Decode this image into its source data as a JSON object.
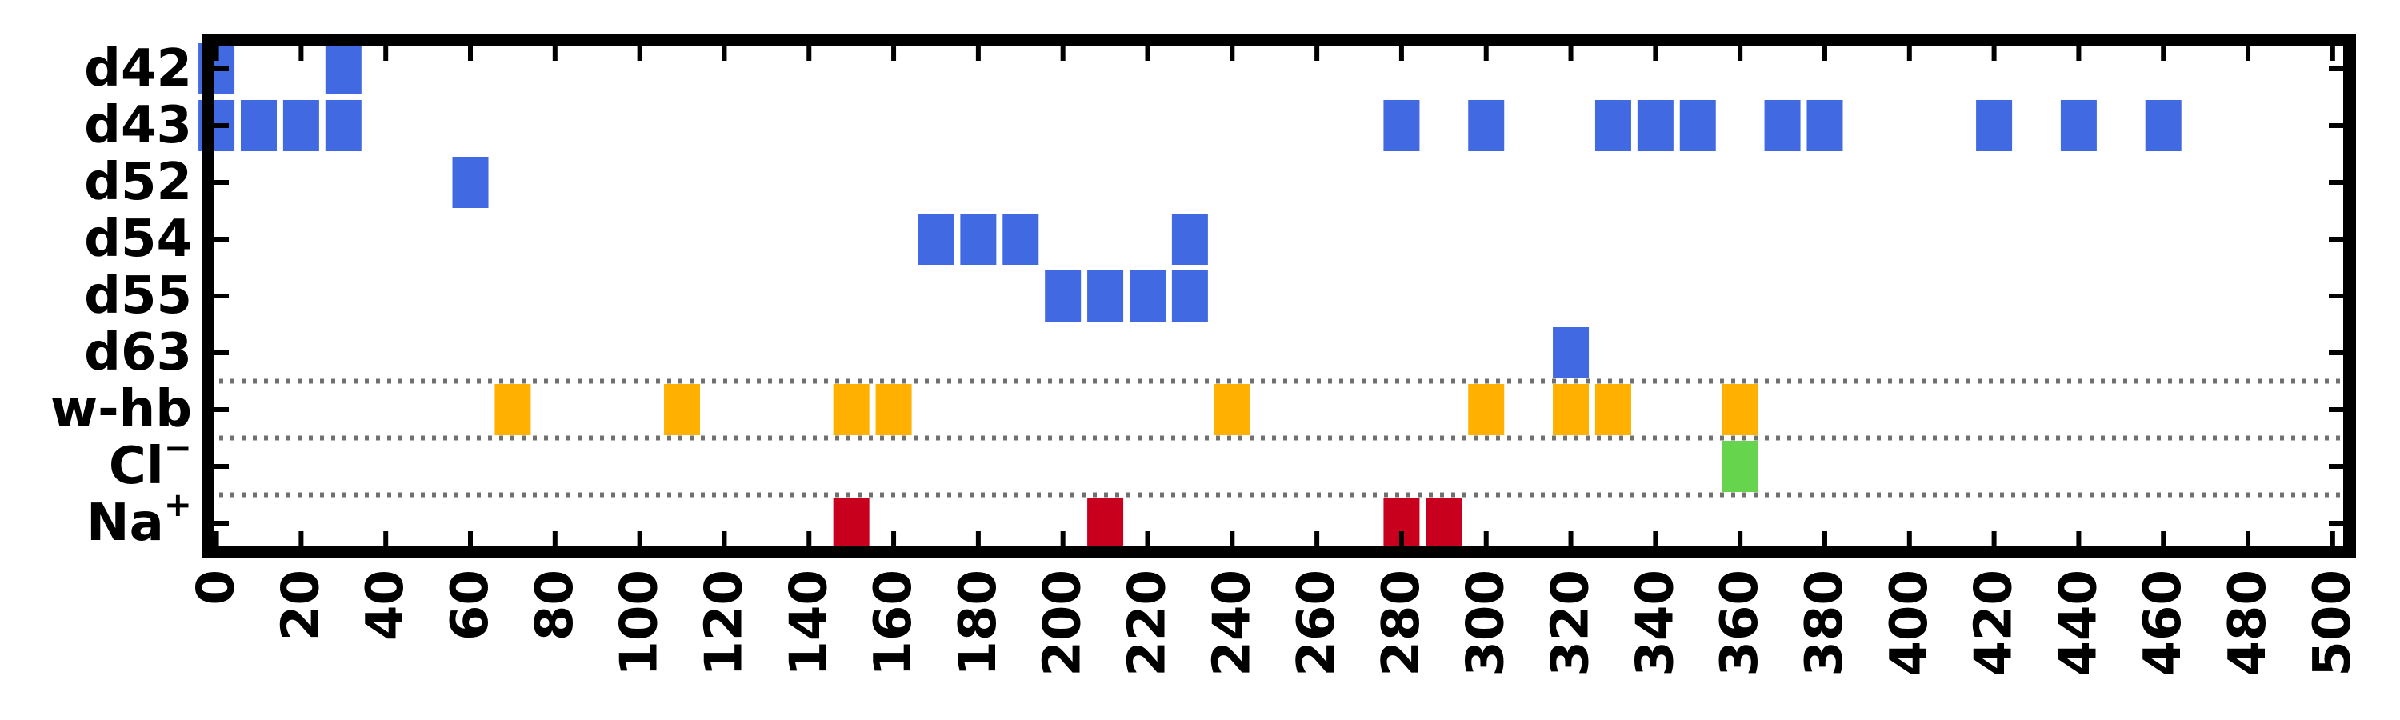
{
  "chart_data": {
    "type": "heatmap",
    "title": "",
    "xlabel": "",
    "ylabel": "",
    "xlim": [
      -2,
      504
    ],
    "x_ticks": [
      "0",
      "20",
      "40",
      "60",
      "80",
      "100",
      "120",
      "140",
      "160",
      "180",
      "200",
      "220",
      "240",
      "260",
      "280",
      "300",
      "320",
      "340",
      "360",
      "380",
      "400",
      "420",
      "440",
      "460",
      "480",
      "500"
    ],
    "rows": [
      {
        "label": "d42",
        "main": "d42",
        "sup": "",
        "color": "#4169e1",
        "x": [
          0,
          30
        ]
      },
      {
        "label": "d43",
        "main": "d43",
        "sup": "",
        "color": "#4169e1",
        "x": [
          0,
          10,
          20,
          30,
          280,
          300,
          330,
          340,
          350,
          370,
          380,
          420,
          440,
          460
        ]
      },
      {
        "label": "d52",
        "main": "d52",
        "sup": "",
        "color": "#4169e1",
        "x": [
          60
        ]
      },
      {
        "label": "d54",
        "main": "d54",
        "sup": "",
        "color": "#4169e1",
        "x": [
          170,
          180,
          190,
          230
        ]
      },
      {
        "label": "d55",
        "main": "d55",
        "sup": "",
        "color": "#4169e1",
        "x": [
          200,
          210,
          220,
          230
        ]
      },
      {
        "label": "d63",
        "main": "d63",
        "sup": "",
        "color": "#4169e1",
        "x": [
          320
        ]
      },
      {
        "label": "w-hb",
        "main": "w-hb",
        "sup": "",
        "color": "#ffb000",
        "x": [
          70,
          110,
          150,
          160,
          240,
          300,
          320,
          330,
          360
        ]
      },
      {
        "label": "Cl−",
        "main": "Cl",
        "sup": "−",
        "color": "#66d44c",
        "x": [
          360
        ]
      },
      {
        "label": "Na+",
        "main": "Na",
        "sup": "+",
        "color": "#c8001e",
        "x": [
          150,
          210,
          280,
          290
        ]
      }
    ],
    "separators_after_rows": [
      "d63",
      "w-hb",
      "Cl−"
    ],
    "grid": false,
    "legend": "none"
  }
}
